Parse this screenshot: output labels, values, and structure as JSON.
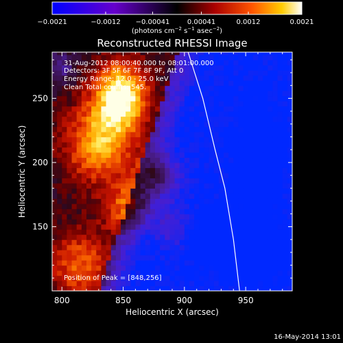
{
  "colorbar": {
    "ticks": [
      "−0.0021",
      "−0.0012",
      "−0.00041",
      "0.00041",
      "0.0012",
      "0.0021"
    ],
    "tick_values": [
      -0.0021,
      -0.0012,
      -0.00041,
      0.00041,
      0.0012,
      0.0021
    ],
    "range": [
      -0.0021,
      0.0021
    ],
    "unit_main": "(photons cm",
    "unit_sup1": "−2",
    "unit_mid": " s",
    "unit_sup2": "−1",
    "unit_end": " asec",
    "unit_sup3": "−2",
    "unit_close": ")",
    "colors": [
      "#0000ff",
      "#5500cc",
      "#000000",
      "#aa0000",
      "#ff5500",
      "#ffcc00",
      "#ffffff"
    ]
  },
  "chart_data": {
    "type": "heatmap",
    "title": "Reconstructed RHESSI Image",
    "xlabel": "Heliocentric X (arcsec)",
    "ylabel": "Heliocentric Y (arcsec)",
    "xlim": [
      792,
      988
    ],
    "ylim": [
      100,
      286
    ],
    "xticks": [
      800,
      850,
      900,
      950
    ],
    "yticks": [
      150,
      200,
      250
    ],
    "xtick_labels": [
      "800",
      "850",
      "900",
      "950"
    ],
    "ytick_labels": [
      "150",
      "200",
      "250"
    ],
    "peak": [
      848,
      256
    ],
    "limb_curve": [
      [
        903,
        286
      ],
      [
        915,
        250
      ],
      [
        925,
        210
      ],
      [
        933,
        180
      ],
      [
        940,
        140
      ],
      [
        945,
        100
      ]
    ],
    "annotations": [
      "31-Aug-2012 08:00:40.000 to 08:01:00.000",
      "Detectors: 3F 5F 6F 7F 8F 9F, Att 0",
      "Energy Range: 12.0 - 25.0 keV",
      "Clean   Total counts: 545."
    ],
    "peak_label": "Position of Peak = [848,256]"
  },
  "footer": {
    "timestamp": "16-May-2014 13:01"
  }
}
